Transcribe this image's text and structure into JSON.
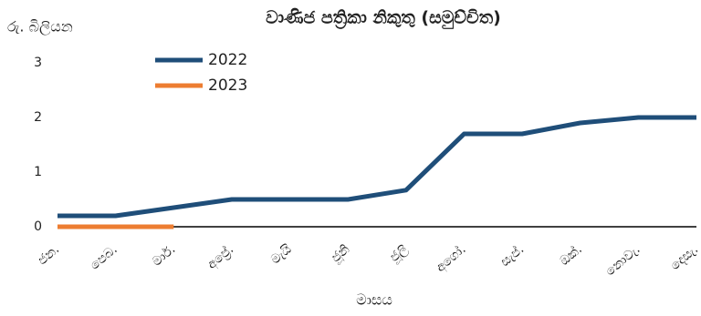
{
  "chart_data": {
    "type": "line",
    "title": "වාණිජ පත්‍රිකා නිකුතු (සමුච්චිත)",
    "y_label": "රු. බිලියන",
    "x_label": "මාසය",
    "categories": [
      "ජන.",
      "පෙබ.",
      "මාර්.",
      "අප්‍රේ.",
      "මැයි",
      "ජූනි",
      "ජූලි",
      "අගෝ.",
      "සැප්.",
      "ඔක්.",
      "නොවැ.",
      "දෙසැ."
    ],
    "series": [
      {
        "name": "2022",
        "color": "#1f4e79",
        "values": [
          0.2,
          0.2,
          0.35,
          0.5,
          0.5,
          0.5,
          0.67,
          1.7,
          1.7,
          1.9,
          2.0,
          2.0
        ]
      },
      {
        "name": "2023",
        "color": "#ed7d31",
        "values": [
          0,
          0,
          0,
          null,
          null,
          null,
          null,
          null,
          null,
          null,
          null,
          null
        ]
      }
    ],
    "ylim": [
      0,
      3
    ],
    "yticks": [
      0,
      1,
      2,
      3
    ],
    "grid": false,
    "legend": "upper left"
  }
}
